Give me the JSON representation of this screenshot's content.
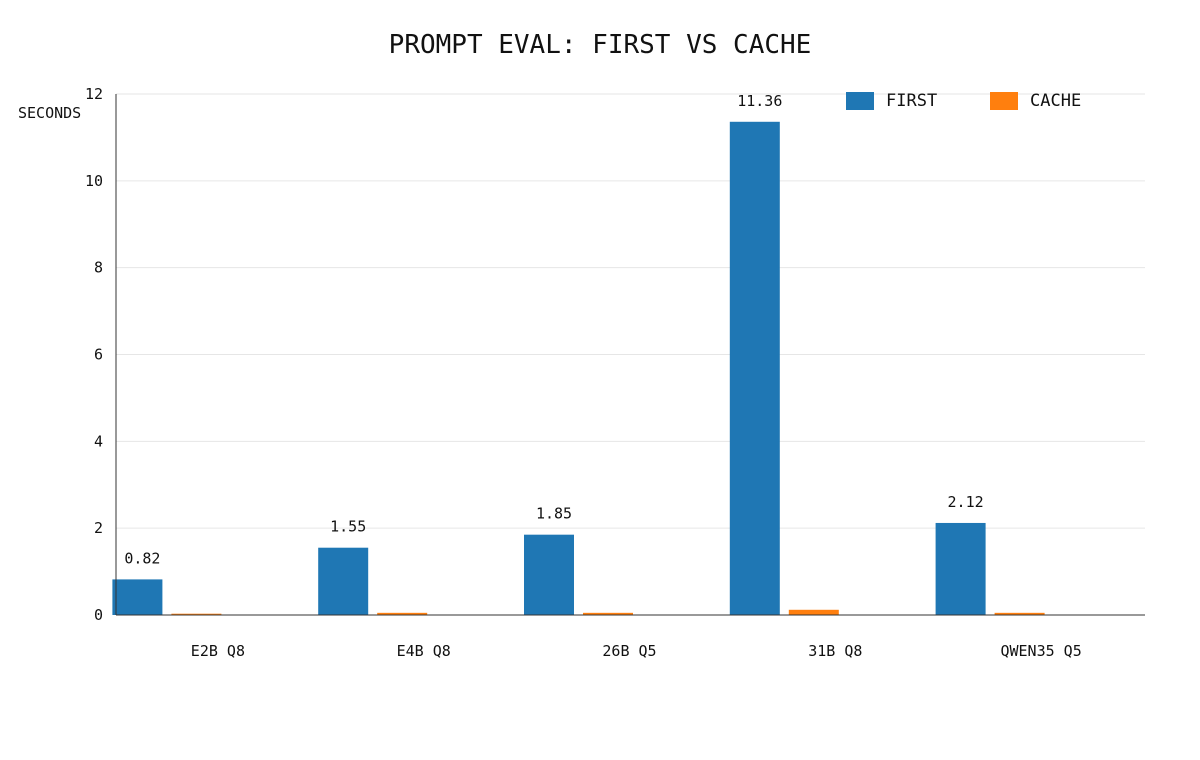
{
  "chart_data": {
    "type": "bar",
    "title": "PROMPT EVAL: FIRST VS CACHE",
    "xlabel": "",
    "ylabel": "SECONDS",
    "ylim": [
      0,
      12
    ],
    "yticks": [
      0,
      2,
      4,
      6,
      8,
      10,
      12
    ],
    "grid": true,
    "legend_position": "top-right",
    "categories": [
      "E2B Q8",
      "E4B Q8",
      "26B Q5",
      "31B Q8",
      "QWEN35 Q5"
    ],
    "series": [
      {
        "name": "FIRST",
        "color": "#1f77b4",
        "values": [
          0.82,
          1.55,
          1.85,
          11.36,
          2.12
        ],
        "value_labels": [
          "0.82",
          "1.55",
          "1.85",
          "11.36",
          "2.12"
        ]
      },
      {
        "name": "CACHE",
        "color": "#ff7f0e",
        "values": [
          0.03,
          0.05,
          0.05,
          0.12,
          0.05
        ]
      }
    ]
  }
}
